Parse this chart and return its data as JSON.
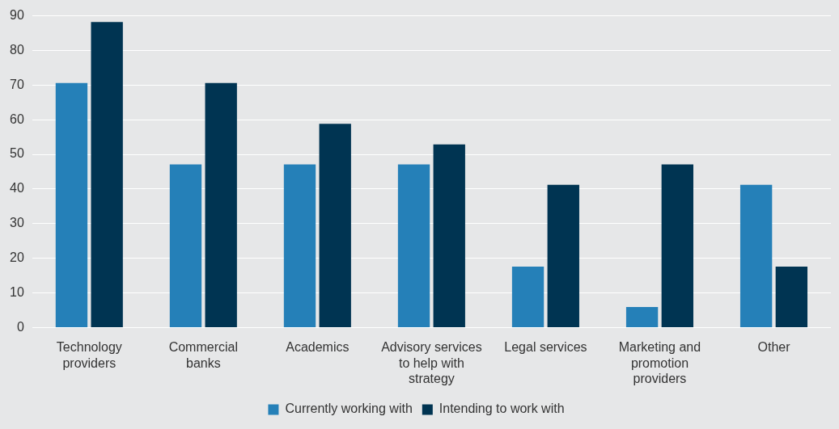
{
  "chart_data": {
    "type": "bar",
    "categories": [
      "Technology providers",
      "Commercial banks",
      "Academics",
      "Advisory services to help with strategy",
      "Legal services",
      "Marketing and promotion providers",
      "Other"
    ],
    "series": [
      {
        "name": "Currently working with",
        "color": "#2580b8",
        "values": [
          70.6,
          47.1,
          47.1,
          47.1,
          17.6,
          5.9,
          41.2
        ]
      },
      {
        "name": "Intending to work with",
        "color": "#003452",
        "values": [
          88.2,
          70.6,
          58.8,
          52.9,
          41.2,
          47.1,
          17.6
        ]
      }
    ],
    "ylim": [
      0,
      90
    ],
    "yticks": [
      0,
      10,
      20,
      30,
      40,
      50,
      60,
      70,
      80,
      90
    ],
    "grid": "y",
    "legend": "bottom"
  }
}
